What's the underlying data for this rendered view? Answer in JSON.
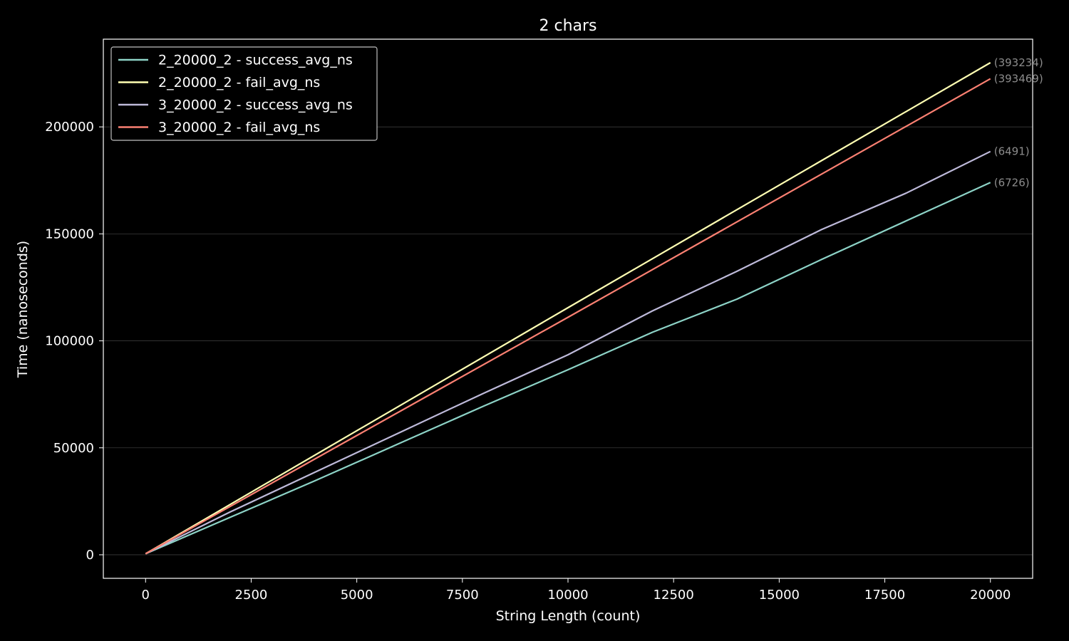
{
  "chart_data": {
    "type": "line",
    "title": "2 chars",
    "xlabel": "String Length (count)",
    "ylabel": "Time (nanoseconds)",
    "xlim": [
      -1000,
      21000
    ],
    "ylim": [
      -11000,
      241000
    ],
    "xticks": [
      0,
      2500,
      5000,
      7500,
      10000,
      12500,
      15000,
      17500,
      20000
    ],
    "yticks": [
      0,
      50000,
      100000,
      150000,
      200000
    ],
    "grid": "horizontal",
    "legend_position": "top-left",
    "background": "#000000",
    "series": [
      {
        "name": "2_20000_2 - success_avg_ns",
        "color": "#8dd3c7",
        "end_label": "(6726)",
        "points": [
          [
            0,
            500
          ],
          [
            2000,
            17500
          ],
          [
            4000,
            34500
          ],
          [
            6000,
            52000
          ],
          [
            8000,
            69500
          ],
          [
            10000,
            86500
          ],
          [
            12000,
            104000
          ],
          [
            14000,
            119500
          ],
          [
            16000,
            138000
          ],
          [
            18000,
            156000
          ],
          [
            20000,
            174000
          ]
        ]
      },
      {
        "name": "2_20000_2 - fail_avg_ns",
        "color": "#ffffb3",
        "end_label": "(393234)",
        "points": [
          [
            0,
            500
          ],
          [
            10000,
            115500
          ],
          [
            20000,
            230000
          ]
        ]
      },
      {
        "name": "3_20000_2 - success_avg_ns",
        "color": "#bebada",
        "end_label": "(6491)",
        "points": [
          [
            0,
            500
          ],
          [
            2000,
            20000
          ],
          [
            4000,
            38500
          ],
          [
            6000,
            57000
          ],
          [
            8000,
            75500
          ],
          [
            10000,
            93500
          ],
          [
            12000,
            114000
          ],
          [
            14000,
            132500
          ],
          [
            16000,
            152000
          ],
          [
            18000,
            169000
          ],
          [
            20000,
            188500
          ]
        ]
      },
      {
        "name": "3_20000_2 - fail_avg_ns",
        "color": "#fb8072",
        "end_label": "(393469)",
        "points": [
          [
            0,
            500
          ],
          [
            10000,
            111000
          ],
          [
            20000,
            222500
          ]
        ]
      }
    ]
  }
}
